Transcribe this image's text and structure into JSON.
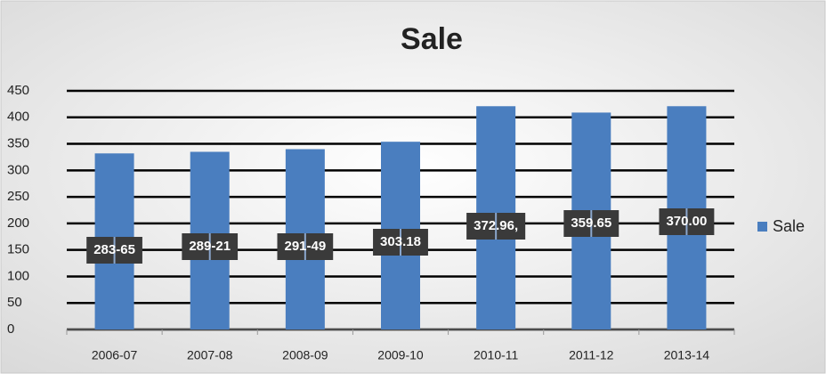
{
  "chart_data": {
    "type": "bar",
    "title": "Sale",
    "categories": [
      "2006-07",
      "2007-08",
      "2008-09",
      "2009-10",
      "2010-11",
      "2011-12",
      "2013-14"
    ],
    "series": [
      {
        "name": "Sale",
        "color": "#4a7ebf",
        "values": [
          332,
          335,
          340,
          354,
          421,
          409,
          421
        ]
      }
    ],
    "annotations": [
      "283-65",
      "289-21",
      "291-49",
      "303.18",
      "372.96,",
      "359.65",
      "370.00"
    ],
    "ylim": [
      0,
      450
    ],
    "yticks": [
      0,
      50,
      100,
      150,
      200,
      250,
      300,
      350,
      400,
      450
    ],
    "grid": true,
    "legend": "right"
  }
}
